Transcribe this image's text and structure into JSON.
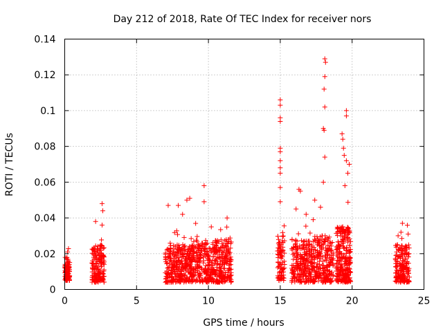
{
  "chart_data": {
    "type": "scatter",
    "title": "Day 212 of 2018, Rate Of TEC Index for receiver nors",
    "xlabel": "GPS time / hours",
    "ylabel": "ROTI / TECUs",
    "xlim": [
      0,
      25
    ],
    "ylim": [
      0,
      0.14
    ],
    "x_ticks": [
      0,
      5,
      10,
      15,
      20,
      25
    ],
    "x_tick_labels": [
      "0",
      "5",
      "10",
      "15",
      "20",
      "25"
    ],
    "y_ticks": [
      0,
      0.02,
      0.04,
      0.06,
      0.08,
      0.1,
      0.12,
      0.14
    ],
    "y_tick_labels": [
      "0",
      "0.02",
      "0.04",
      "0.06",
      "0.08",
      "0.1",
      "0.12",
      "0.14"
    ],
    "grid": true,
    "marker": "plus",
    "color": "#ff0000",
    "clusters": [
      {
        "x_start": 0.0,
        "x_end": 0.35,
        "y_base": 0.005,
        "y_body": 0.018,
        "count": 90,
        "peaks": [
          {
            "x": 0.2,
            "y": 0.021
          }
        ]
      },
      {
        "x_start": 1.9,
        "x_end": 2.75,
        "y_base": 0.004,
        "y_body": 0.025,
        "count": 170,
        "peaks": [
          {
            "x": 2.6,
            "y": 0.048
          },
          {
            "x": 2.65,
            "y": 0.044
          },
          {
            "x": 2.6,
            "y": 0.036
          },
          {
            "x": 2.15,
            "y": 0.038
          }
        ]
      },
      {
        "x_start": 7.0,
        "x_end": 9.0,
        "y_base": 0.004,
        "y_body": 0.025,
        "count": 340,
        "peaks": [
          {
            "x": 7.2,
            "y": 0.047
          },
          {
            "x": 7.9,
            "y": 0.047
          },
          {
            "x": 8.5,
            "y": 0.05
          },
          {
            "x": 8.7,
            "y": 0.051
          },
          {
            "x": 8.2,
            "y": 0.042
          }
        ]
      },
      {
        "x_start": 9.0,
        "x_end": 11.6,
        "y_base": 0.004,
        "y_body": 0.028,
        "count": 420,
        "peaks": [
          {
            "x": 9.7,
            "y": 0.058
          },
          {
            "x": 9.7,
            "y": 0.049
          },
          {
            "x": 10.2,
            "y": 0.035
          },
          {
            "x": 11.3,
            "y": 0.04
          }
        ]
      },
      {
        "x_start": 14.8,
        "x_end": 15.3,
        "y_base": 0.005,
        "y_body": 0.03,
        "count": 90,
        "peaks": [
          {
            "x": 15.0,
            "y": 0.106
          },
          {
            "x": 15.0,
            "y": 0.103
          },
          {
            "x": 15.0,
            "y": 0.096
          },
          {
            "x": 15.0,
            "y": 0.094
          },
          {
            "x": 15.0,
            "y": 0.079
          },
          {
            "x": 15.0,
            "y": 0.077
          },
          {
            "x": 15.0,
            "y": 0.072
          },
          {
            "x": 15.0,
            "y": 0.068
          },
          {
            "x": 15.0,
            "y": 0.065
          },
          {
            "x": 15.0,
            "y": 0.057
          },
          {
            "x": 15.0,
            "y": 0.049
          }
        ]
      },
      {
        "x_start": 15.8,
        "x_end": 17.0,
        "y_base": 0.004,
        "y_body": 0.028,
        "count": 200,
        "peaks": [
          {
            "x": 16.3,
            "y": 0.056
          },
          {
            "x": 16.4,
            "y": 0.055
          },
          {
            "x": 16.1,
            "y": 0.045
          },
          {
            "x": 16.8,
            "y": 0.042
          }
        ]
      },
      {
        "x_start": 17.0,
        "x_end": 18.7,
        "y_base": 0.004,
        "y_body": 0.03,
        "count": 280,
        "peaks": [
          {
            "x": 18.1,
            "y": 0.129
          },
          {
            "x": 18.15,
            "y": 0.127
          },
          {
            "x": 18.1,
            "y": 0.119
          },
          {
            "x": 18.05,
            "y": 0.112
          },
          {
            "x": 18.1,
            "y": 0.102
          },
          {
            "x": 18.0,
            "y": 0.09
          },
          {
            "x": 18.05,
            "y": 0.089
          },
          {
            "x": 18.1,
            "y": 0.074
          },
          {
            "x": 18.0,
            "y": 0.06
          },
          {
            "x": 17.4,
            "y": 0.05
          },
          {
            "x": 17.8,
            "y": 0.046
          }
        ]
      },
      {
        "x_start": 18.9,
        "x_end": 19.9,
        "y_base": 0.004,
        "y_body": 0.035,
        "count": 260,
        "peaks": [
          {
            "x": 19.6,
            "y": 0.1
          },
          {
            "x": 19.6,
            "y": 0.097
          },
          {
            "x": 19.3,
            "y": 0.087
          },
          {
            "x": 19.35,
            "y": 0.084
          },
          {
            "x": 19.4,
            "y": 0.079
          },
          {
            "x": 19.45,
            "y": 0.075
          },
          {
            "x": 19.6,
            "y": 0.072
          },
          {
            "x": 19.8,
            "y": 0.07
          },
          {
            "x": 19.7,
            "y": 0.065
          },
          {
            "x": 19.5,
            "y": 0.058
          }
        ]
      },
      {
        "x_start": 23.0,
        "x_end": 24.0,
        "y_base": 0.004,
        "y_body": 0.025,
        "count": 180,
        "peaks": [
          {
            "x": 23.5,
            "y": 0.037
          },
          {
            "x": 23.4,
            "y": 0.032
          },
          {
            "x": 23.9,
            "y": 0.031
          },
          {
            "x": 23.2,
            "y": 0.03
          }
        ]
      }
    ]
  }
}
